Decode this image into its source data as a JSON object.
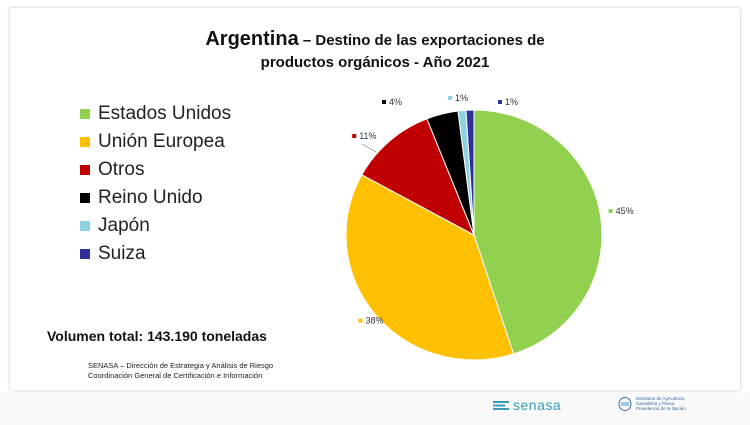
{
  "header": {
    "country": "Argentina",
    "title_line1": " – Destino de las exportaciones de",
    "title_line2": "productos orgánicos - Año 2021"
  },
  "legend": [
    {
      "label": "Estados Unidos",
      "color": "#92d050"
    },
    {
      "label": "Unión Europea",
      "color": "#ffc000"
    },
    {
      "label": "Otros",
      "color": "#c00000"
    },
    {
      "label": "Reino Unido",
      "color": "#000000"
    },
    {
      "label": "Japón",
      "color": "#8fd3e0"
    },
    {
      "label": "Suiza",
      "color": "#30309a"
    }
  ],
  "total": "Volumen total:  143.190 toneladas",
  "source": {
    "line1": "SENASA – Dirección de Estrategia  y Análisis de Riesgo",
    "line2": "Coordinación General de Certificación e Información"
  },
  "footer": {
    "brand": "senasa",
    "ministry_line1": "Ministerio de Agricultura,",
    "ministry_line2": "Ganadería y Pesca",
    "ministry_line3": "Presidencia de la Nación"
  },
  "chart_data": {
    "type": "pie",
    "categories": [
      "Estados Unidos",
      "Unión Europea",
      "Otros",
      "Reino Unido",
      "Japón",
      "Suiza"
    ],
    "values": [
      45,
      38,
      11,
      4,
      1,
      1
    ],
    "labels": [
      "45%",
      "38%",
      "11%",
      "4%",
      "1%",
      "1%"
    ],
    "colors": [
      "#92d050",
      "#ffc000",
      "#c00000",
      "#000000",
      "#8fd3e0",
      "#30309a"
    ],
    "title": "Argentina – Destino de las exportaciones de productos orgánicos - Año 2021",
    "legend_position": "left"
  }
}
